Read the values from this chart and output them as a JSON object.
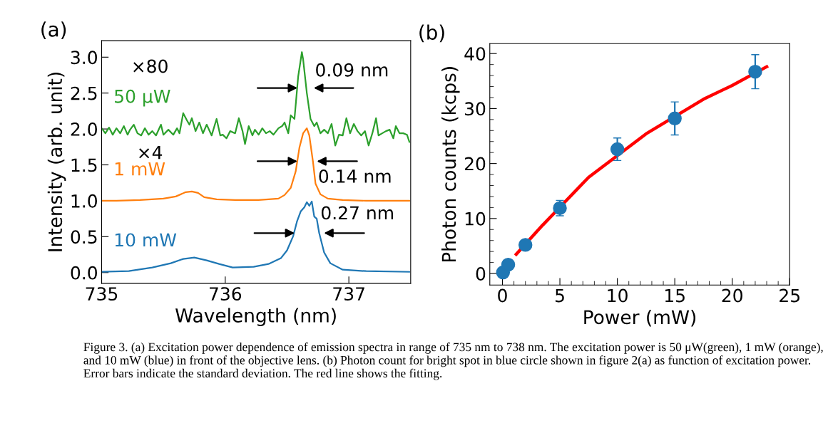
{
  "chart_data": [
    {
      "type": "line",
      "title": "(a)",
      "xlabel": "Wavelength (nm)",
      "ylabel": "Intensity (arb. unit)",
      "xlim": [
        735,
        737.5
      ],
      "xticks": [
        735,
        736,
        737
      ],
      "ylim": [
        -0.15,
        3.23
      ],
      "yticks": [
        {
          "value": 0,
          "label": "0.0"
        },
        0.5,
        {
          "value": 1,
          "label": "1.0"
        },
        1.5,
        {
          "value": 2,
          "label": "2.0"
        },
        2.5,
        {
          "value": 3,
          "label": "3.0"
        }
      ],
      "grid": false,
      "legend": false,
      "line_style": "solid",
      "series": [
        {
          "name": "50 μW",
          "color": "#2ca02c",
          "x": [
            735.0,
            735.03,
            735.06,
            735.09,
            735.12,
            735.15,
            735.18,
            735.21,
            735.23,
            735.26,
            735.29,
            735.32,
            735.35,
            735.38,
            735.41,
            735.44,
            735.48,
            735.5,
            735.54,
            735.58,
            735.61,
            735.63,
            735.66,
            735.69,
            735.71,
            735.73,
            735.76,
            735.79,
            735.82,
            735.85,
            735.89,
            735.93,
            735.96,
            735.98,
            736.01,
            736.04,
            736.08,
            736.11,
            736.14,
            736.16,
            736.19,
            736.22,
            736.24,
            736.27,
            736.3,
            736.33,
            736.36,
            736.39,
            736.43,
            736.46,
            736.48,
            736.51,
            736.53,
            736.56,
            736.59,
            736.62,
            736.63,
            736.66,
            736.69,
            736.72,
            736.74,
            736.77,
            736.8,
            736.83,
            736.86,
            736.89,
            736.92,
            736.95,
            736.98,
            737.01,
            737.04,
            737.07,
            737.1,
            737.13,
            737.16,
            737.19,
            737.22,
            737.24,
            737.27,
            737.3,
            737.33,
            737.36,
            737.38,
            737.41,
            737.44,
            737.47,
            737.49
          ],
          "values": [
            2.01,
            1.94,
            2.02,
            1.92,
            2.01,
            1.94,
            2.04,
            1.92,
            1.99,
            2.06,
            1.94,
            1.91,
            2.01,
            1.92,
            1.97,
            1.91,
            2.06,
            1.92,
            1.99,
            1.92,
            2.01,
            1.94,
            2.22,
            2.12,
            2.06,
            2.15,
            1.97,
            2.09,
            1.94,
            2.06,
            1.91,
            2.14,
            1.91,
            1.92,
            1.87,
            1.97,
            1.94,
            2.15,
            1.97,
            1.79,
            2.04,
            1.91,
            1.99,
            1.92,
            2.01,
            1.94,
            1.97,
            1.92,
            2.01,
            2.04,
            2.09,
            1.94,
            2.19,
            2.14,
            2.73,
            3.07,
            2.97,
            2.5,
            2.14,
            2.04,
            2.09,
            1.94,
            1.99,
            1.94,
            2.07,
            1.77,
            1.92,
            1.91,
            2.15,
            1.94,
            2.07,
            1.97,
            1.91,
            1.97,
            1.77,
            1.94,
            2.15,
            1.91,
            1.94,
            1.97,
            1.99,
            1.87,
            2.04,
            1.94,
            1.94,
            1.92,
            1.82
          ]
        },
        {
          "name": "1 mW",
          "color": "#ff7f0e",
          "x": [
            735.0,
            735.12,
            735.31,
            735.5,
            735.6,
            735.68,
            735.73,
            735.78,
            735.83,
            735.93,
            736.08,
            736.27,
            736.43,
            736.48,
            736.53,
            736.57,
            736.6,
            736.63,
            736.66,
            736.68,
            736.71,
            736.73,
            736.77,
            736.83,
            736.95,
            737.14,
            737.33,
            737.49
          ],
          "values": [
            1.0,
            1.0,
            1.01,
            1.03,
            1.06,
            1.12,
            1.13,
            1.11,
            1.05,
            1.02,
            1.01,
            1.01,
            1.03,
            1.08,
            1.18,
            1.41,
            1.74,
            1.94,
            2.01,
            1.91,
            1.54,
            1.24,
            1.09,
            1.03,
            1.01,
            1.0,
            1.0,
            1.0
          ]
        },
        {
          "name": "10 mW",
          "color": "#1f77b4",
          "x": [
            735.0,
            735.22,
            735.41,
            735.56,
            735.66,
            735.75,
            735.85,
            735.95,
            736.06,
            736.23,
            736.35,
            736.45,
            736.5,
            736.55,
            736.58,
            736.61,
            736.64,
            736.66,
            736.68,
            736.7,
            736.72,
            736.74,
            736.76,
            736.8,
            736.85,
            736.95,
            737.14,
            737.49
          ],
          "values": [
            0.01,
            0.02,
            0.07,
            0.13,
            0.19,
            0.21,
            0.17,
            0.12,
            0.07,
            0.08,
            0.12,
            0.2,
            0.31,
            0.51,
            0.71,
            0.85,
            0.91,
            0.98,
            0.93,
            0.99,
            0.78,
            0.75,
            0.55,
            0.28,
            0.13,
            0.04,
            0.02,
            0.01
          ]
        }
      ],
      "annotations": [
        "×80",
        "×4",
        "0.09 nm",
        "0.14 nm",
        "0.27 nm",
        "Figure 3. (a) Excitation power dependence of emission spectra in range of 735 nm to 738 nm. The excitation power is 50 μW(green), 1 mW (orange), and 10 mW (blue) in front of the objective lens. (b) Photon count for bright spot in blue circle shown in figure 2(a) as function of excitation power. Error bars indicate the standard deviation. The red line shows the fitting."
      ]
    },
    {
      "type": "scatter",
      "title": "(b)",
      "xlabel": "Power (mW)",
      "ylabel": "Photon counts (kcps)",
      "xlim": [
        -1.1,
        25
      ],
      "ylim": [
        -2.1,
        41.8
      ],
      "xticks": [
        0,
        {
          "value": 1,
          "label": null
        },
        {
          "value": 2,
          "label": null
        },
        {
          "value": 3,
          "label": null
        },
        {
          "value": 4,
          "label": null
        },
        5,
        {
          "value": 6,
          "label": null
        },
        {
          "value": 7,
          "label": null
        },
        {
          "value": 8,
          "label": null
        },
        {
          "value": 9,
          "label": null
        },
        10,
        {
          "value": 11,
          "label": null
        },
        {
          "value": 12,
          "label": null
        },
        {
          "value": 13,
          "label": null
        },
        {
          "value": 14,
          "label": null
        },
        15,
        {
          "value": 16,
          "label": null
        },
        {
          "value": 17,
          "label": null
        },
        {
          "value": 18,
          "label": null
        },
        {
          "value": 19,
          "label": null
        },
        20,
        {
          "value": 21,
          "label": null
        },
        {
          "value": 22,
          "label": null
        },
        {
          "value": 23,
          "label": null
        },
        {
          "value": 24,
          "label": null
        },
        25
      ],
      "yticks": [
        0,
        {
          "value": 2,
          "label": null
        },
        {
          "value": 4,
          "label": null
        },
        {
          "value": 6,
          "label": null
        },
        {
          "value": 8,
          "label": null
        },
        10,
        {
          "value": 12,
          "label": null
        },
        {
          "value": 14,
          "label": null
        },
        {
          "value": 16,
          "label": null
        },
        {
          "value": 18,
          "label": null
        },
        20,
        {
          "value": 22,
          "label": null
        },
        {
          "value": 24,
          "label": null
        },
        {
          "value": 26,
          "label": null
        },
        {
          "value": 28,
          "label": null
        },
        30,
        {
          "value": 32,
          "label": null
        },
        {
          "value": 34,
          "label": null
        },
        {
          "value": 36,
          "label": null
        },
        {
          "value": 38,
          "label": null
        },
        40
      ],
      "grid": false,
      "legend": false,
      "series": [
        {
          "type": "line",
          "color": "#ff0000",
          "marker": "none",
          "x": [
            1.2,
            3.5,
            7.5,
            12.5,
            17.5,
            20,
            23
          ],
          "values": [
            3.5,
            8.8,
            17.5,
            25.4,
            31.7,
            34.2,
            37.6
          ]
        },
        {
          "type": "scatter",
          "color": "#1f77b4",
          "marker": "circle",
          "x": [
            0.05,
            0.5,
            2,
            5,
            10,
            15,
            22
          ],
          "values": [
            0.2,
            1.6,
            5.2,
            11.9,
            22.6,
            28.2,
            36.7
          ],
          "errors": [
            null,
            null,
            null,
            1.4,
            2.05,
            3.0,
            3.1
          ]
        }
      ]
    }
  ]
}
